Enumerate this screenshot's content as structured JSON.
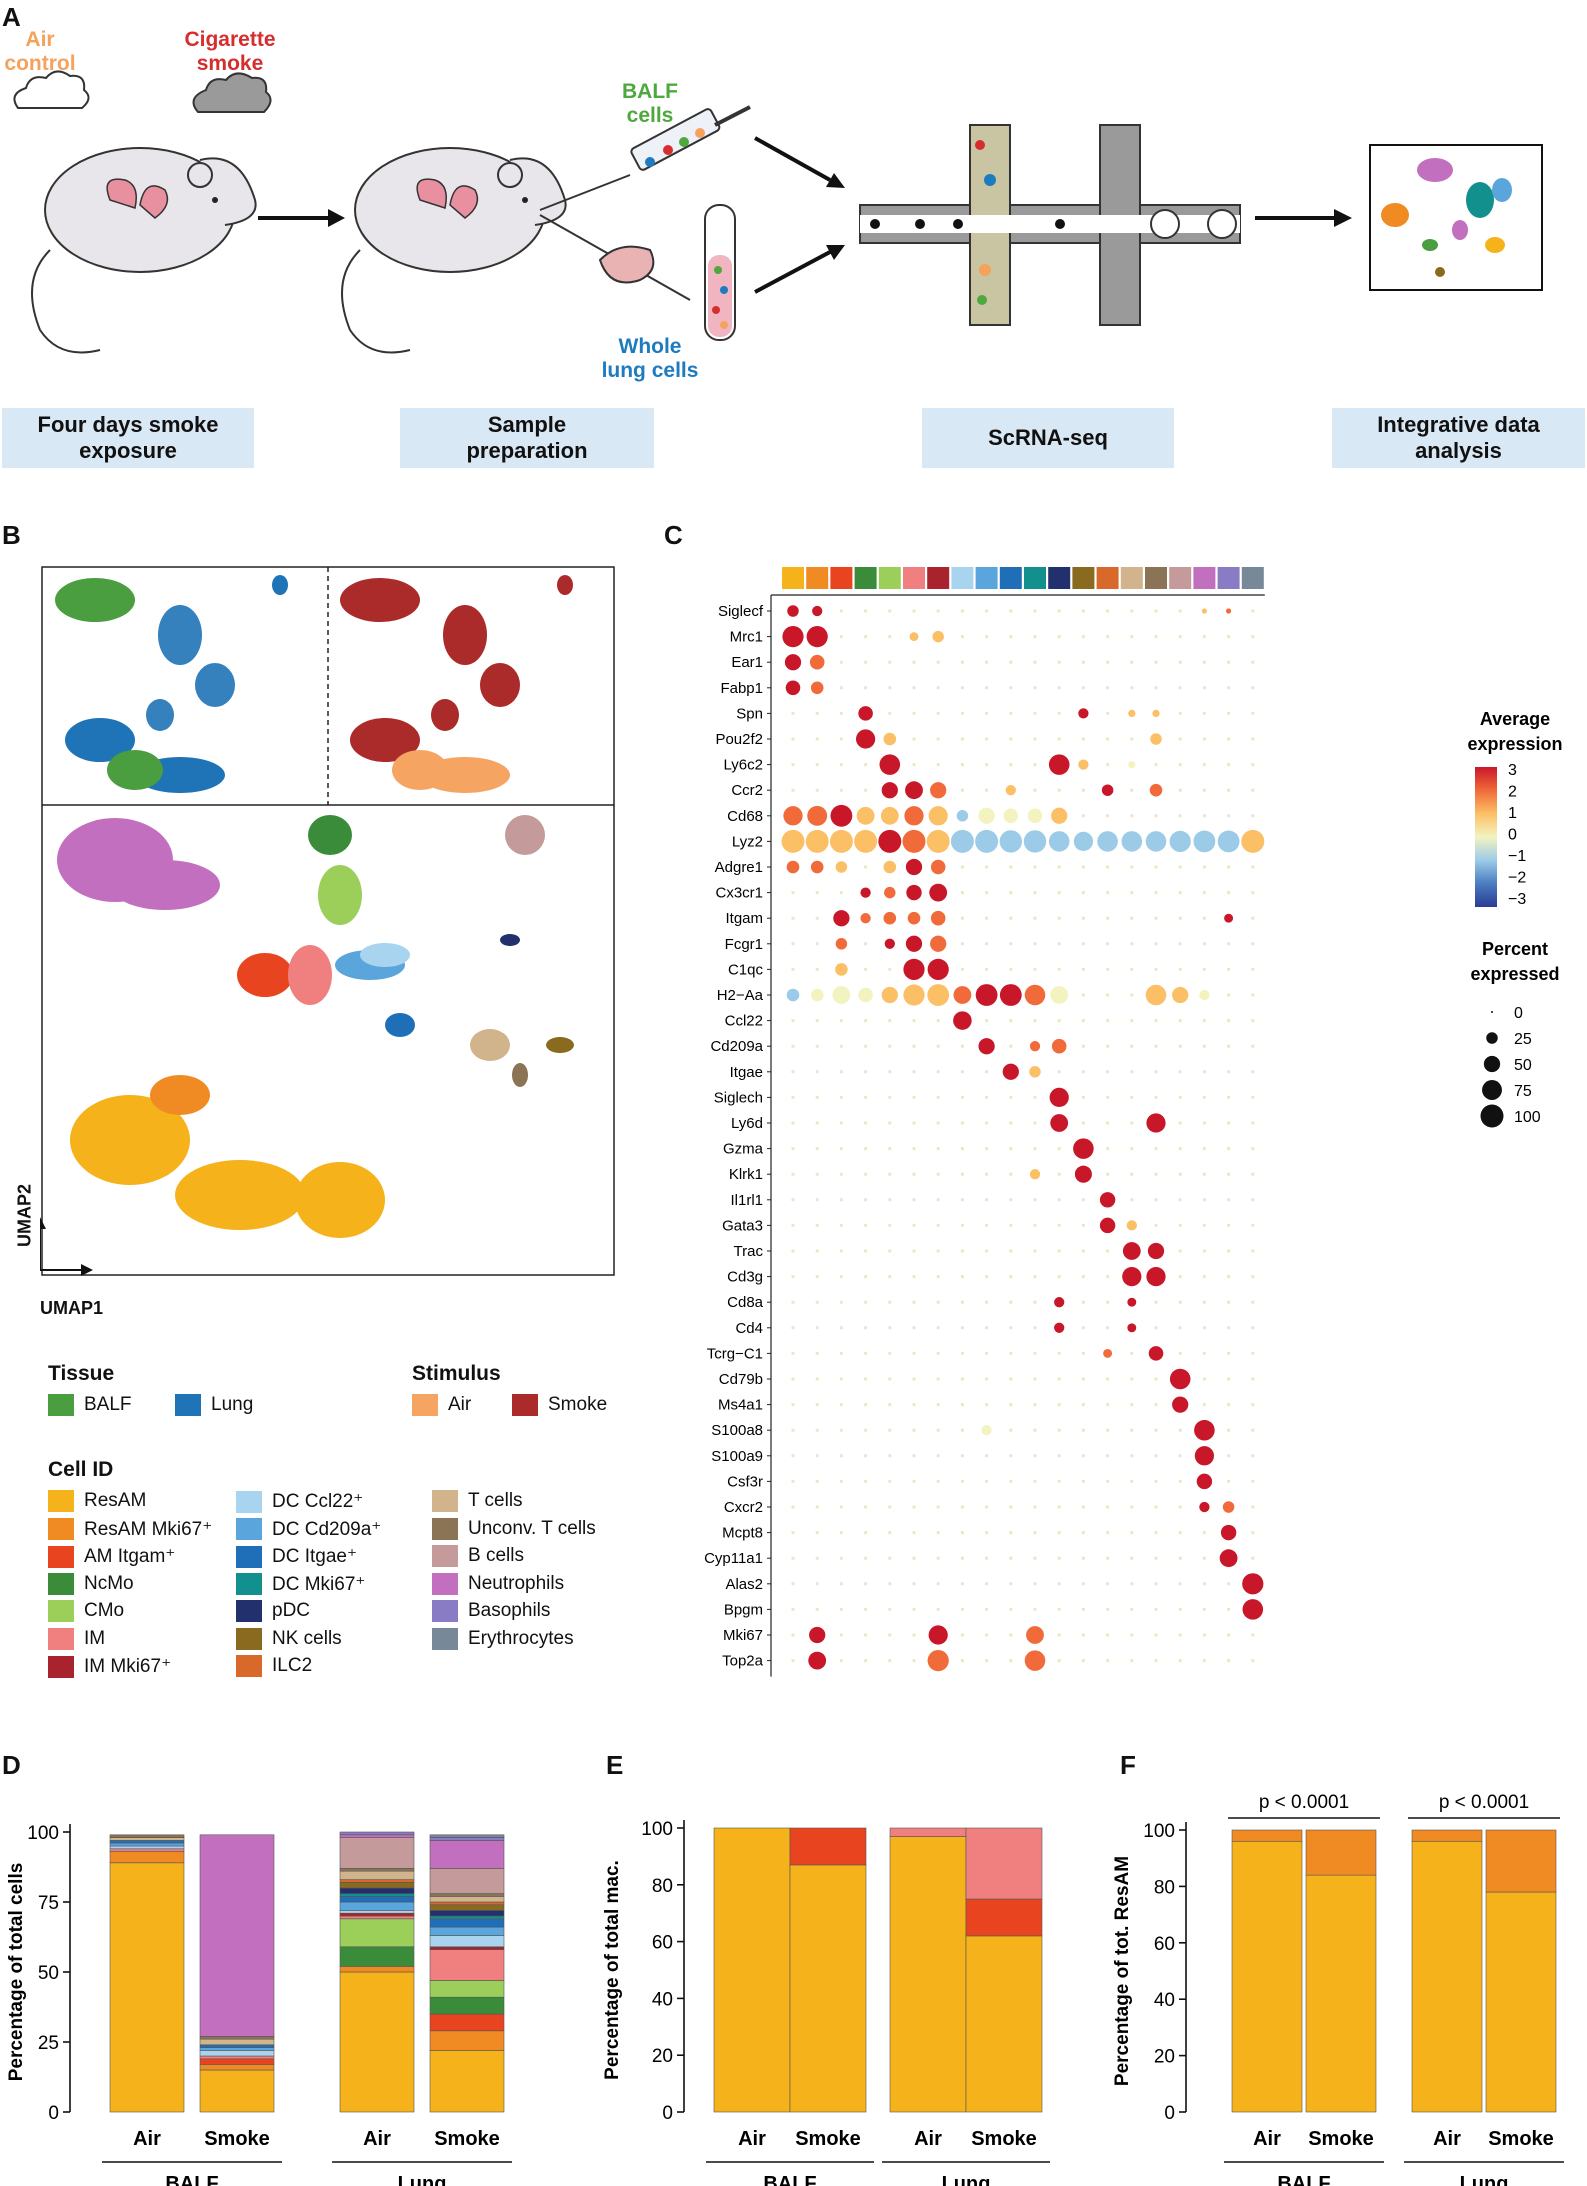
{
  "panels": {
    "A": "A",
    "B": "B",
    "C": "C",
    "D": "D",
    "E": "E",
    "F": "F"
  },
  "panelA": {
    "air_label": [
      "Air",
      "control"
    ],
    "smoke_label": [
      "Cigarette",
      "smoke"
    ],
    "balf_label": [
      "BALF",
      "cells"
    ],
    "lung_label": [
      "Whole",
      "lung cells"
    ],
    "steps": [
      [
        "Four days smoke",
        "exposure"
      ],
      [
        "Sample",
        "preparation"
      ],
      [
        "ScRNA-seq"
      ],
      [
        "Integrative data",
        "analysis"
      ]
    ],
    "colors": {
      "air": "#f5a25d",
      "smoke": "#d62e2e",
      "balf": "#4ea83d",
      "lung": "#1e7bc0"
    }
  },
  "panelB": {
    "axis_x": "UMAP1",
    "axis_y": "UMAP2",
    "tissue_title": "Tissue",
    "tissue": [
      {
        "label": "BALF",
        "color": "#4a9e3f"
      },
      {
        "label": "Lung",
        "color": "#1f73b7"
      }
    ],
    "stimulus_title": "Stimulus",
    "stimulus": [
      {
        "label": "Air",
        "color": "#f5a462"
      },
      {
        "label": "Smoke",
        "color": "#ab2a2a"
      }
    ],
    "cellid_title": "Cell ID",
    "cell_types": [
      {
        "label": "ResAM",
        "color": "#f5b21a"
      },
      {
        "label": "ResAM Mki67⁺",
        "color": "#f08a22"
      },
      {
        "label": "AM Itgam⁺",
        "color": "#e8441f"
      },
      {
        "label": "NcMo",
        "color": "#3a8c3a"
      },
      {
        "label": "CMo",
        "color": "#9bcf5a"
      },
      {
        "label": "IM",
        "color": "#f08080"
      },
      {
        "label": "IM Mki67⁺",
        "color": "#a8232e"
      },
      {
        "label": "DC Ccl22⁺",
        "color": "#a8d4f0"
      },
      {
        "label": "DC Cd209a⁺",
        "color": "#5aa6dc"
      },
      {
        "label": "DC Itgae⁺",
        "color": "#1e6fb8"
      },
      {
        "label": "DC Mki67⁺",
        "color": "#12908e"
      },
      {
        "label": "pDC",
        "color": "#23306e"
      },
      {
        "label": "NK cells",
        "color": "#8a6a1e"
      },
      {
        "label": "ILC2",
        "color": "#d9692a"
      },
      {
        "label": "T cells",
        "color": "#d2b48c"
      },
      {
        "label": "Unconv. T cells",
        "color": "#8b7355"
      },
      {
        "label": "B cells",
        "color": "#c49a9a"
      },
      {
        "label": "Neutrophils",
        "color": "#c36fbf"
      },
      {
        "label": "Basophils",
        "color": "#8a7cc4"
      },
      {
        "label": "Erythrocytes",
        "color": "#778899"
      }
    ]
  },
  "panelC": {
    "genes": [
      "Siglecf",
      "Mrc1",
      "Ear1",
      "Fabp1",
      "Spn",
      "Pou2f2",
      "Ly6c2",
      "Ccr2",
      "Cd68",
      "Lyz2",
      "Adgre1",
      "Cx3cr1",
      "Itgam",
      "Fcgr1",
      "C1qc",
      "H2−Aa",
      "Ccl22",
      "Cd209a",
      "Itgae",
      "Siglech",
      "Ly6d",
      "Gzma",
      "Klrk1",
      "Il1rl1",
      "Gata3",
      "Trac",
      "Cd3g",
      "Cd8a",
      "Cd4",
      "Tcrg−C1",
      "Cd79b",
      "Ms4a1",
      "S100a8",
      "S100a9",
      "Csf3r",
      "Cxcr2",
      "Mcpt8",
      "Cyp11a1",
      "Alas2",
      "Bpgm",
      "Mki67",
      "Top2a"
    ],
    "avg_title": [
      "Average",
      "expression"
    ],
    "avg_ticks": [
      "3",
      "2",
      "1",
      "0",
      "−1",
      "−2",
      "−3"
    ],
    "pct_title": [
      "Percent",
      "expressed"
    ],
    "pct_ticks": [
      "0",
      "25",
      "50",
      "75",
      "100"
    ]
  },
  "chart_data": [
    {
      "type": "bar",
      "stacked": true,
      "title": "D",
      "ylabel": "Percentage of total cells",
      "ylim": [
        0,
        100
      ],
      "yticks": [
        "0",
        "25",
        "50",
        "75",
        "100"
      ],
      "categories": [
        "Air",
        "Smoke",
        "Air",
        "Smoke"
      ],
      "groups": [
        "BALF",
        "Lung"
      ],
      "series": [
        {
          "name": "ResAM",
          "color": "#f5b21a",
          "values": [
            89,
            15,
            50,
            22
          ]
        },
        {
          "name": "ResAM Mki67⁺",
          "color": "#f08a22",
          "values": [
            4,
            2,
            2,
            7
          ]
        },
        {
          "name": "AM Itgam⁺",
          "color": "#e8441f",
          "values": [
            0,
            2,
            0,
            6
          ]
        },
        {
          "name": "NcMo",
          "color": "#3a8c3a",
          "values": [
            0,
            0,
            7,
            6
          ]
        },
        {
          "name": "CMo",
          "color": "#9bcf5a",
          "values": [
            0,
            0,
            10,
            6
          ]
        },
        {
          "name": "IM",
          "color": "#f08080",
          "values": [
            1,
            1,
            1,
            11
          ]
        },
        {
          "name": "IM Mki67⁺",
          "color": "#a8232e",
          "values": [
            0,
            0,
            1,
            1
          ]
        },
        {
          "name": "DC Ccl22⁺",
          "color": "#a8d4f0",
          "values": [
            1,
            2,
            1,
            4
          ]
        },
        {
          "name": "DC Cd209a⁺",
          "color": "#5aa6dc",
          "values": [
            1,
            1,
            3,
            3
          ]
        },
        {
          "name": "DC Itgae⁺",
          "color": "#1e6fb8",
          "values": [
            1,
            1,
            2,
            3
          ]
        },
        {
          "name": "DC Mki67⁺",
          "color": "#12908e",
          "values": [
            0,
            0,
            1,
            1
          ]
        },
        {
          "name": "pDC",
          "color": "#23306e",
          "values": [
            0,
            0,
            2,
            2
          ]
        },
        {
          "name": "NK cells",
          "color": "#8a6a1e",
          "values": [
            0,
            0,
            2,
            2
          ]
        },
        {
          "name": "ILC2",
          "color": "#d9692a",
          "values": [
            0,
            0,
            1,
            1
          ]
        },
        {
          "name": "T cells",
          "color": "#d2b48c",
          "values": [
            1,
            2,
            3,
            2
          ]
        },
        {
          "name": "Unconv. T cells",
          "color": "#8b7355",
          "values": [
            1,
            1,
            1,
            1
          ]
        },
        {
          "name": "B cells",
          "color": "#c49a9a",
          "values": [
            0,
            0,
            11,
            9
          ]
        },
        {
          "name": "Neutrophils",
          "color": "#c36fbf",
          "values": [
            0,
            72,
            1,
            10
          ]
        },
        {
          "name": "Basophils",
          "color": "#8a7cc4",
          "values": [
            0,
            0,
            1,
            1
          ]
        },
        {
          "name": "Erythrocytes",
          "color": "#778899",
          "values": [
            0,
            0,
            0,
            1
          ]
        }
      ]
    },
    {
      "type": "bar",
      "stacked": true,
      "title": "E",
      "ylabel": "Percentage of total mac.",
      "ylim": [
        0,
        100
      ],
      "yticks": [
        "0",
        "20",
        "40",
        "60",
        "80",
        "100"
      ],
      "categories": [
        "Air",
        "Smoke",
        "Air",
        "Smoke"
      ],
      "groups": [
        "BALF",
        "Lung"
      ],
      "series": [
        {
          "name": "ResAM",
          "color": "#f5b21a",
          "values": [
            100,
            87,
            97,
            62
          ]
        },
        {
          "name": "AM Itgam⁺",
          "color": "#e8441f",
          "values": [
            0,
            13,
            0,
            13
          ]
        },
        {
          "name": "IM",
          "color": "#f08080",
          "values": [
            0,
            0,
            3,
            25
          ]
        }
      ]
    },
    {
      "type": "bar",
      "stacked": true,
      "title": "F",
      "ylabel": "Percentage of tot. ResAM",
      "ylim": [
        0,
        100
      ],
      "yticks": [
        "0",
        "20",
        "40",
        "60",
        "80",
        "100"
      ],
      "categories": [
        "Air",
        "Smoke",
        "Air",
        "Smoke"
      ],
      "groups": [
        "BALF",
        "Lung"
      ],
      "annotations": [
        "p < 0.0001",
        "p < 0.0001"
      ],
      "series": [
        {
          "name": "ResAM",
          "color": "#f5b21a",
          "values": [
            96,
            84,
            96,
            78
          ]
        },
        {
          "name": "ResAM Mki67⁺",
          "color": "#f08a22",
          "values": [
            4,
            16,
            4,
            22
          ]
        }
      ]
    }
  ]
}
